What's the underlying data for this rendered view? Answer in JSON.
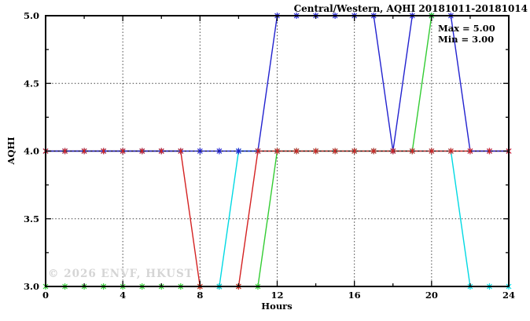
{
  "chart": {
    "title": "Central/Western, AQHI 20181011-20181014",
    "annotation_max": "Max = 5.00",
    "annotation_min": "Min = 3.00",
    "watermark": "© 2026 ENVF, HKUST",
    "xlabel": "Hours",
    "ylabel": "AQHI"
  },
  "chart_data": {
    "type": "line",
    "title": "Central/Western, AQHI 20181011-20181014",
    "xlabel": "Hours",
    "ylabel": "AQHI",
    "xlim": [
      0,
      24
    ],
    "ylim": [
      3.0,
      5.0
    ],
    "xticks": [
      0,
      4,
      8,
      12,
      16,
      20,
      24
    ],
    "xticklabels": [
      "0",
      "4",
      "8",
      "12",
      "16",
      "20",
      "24"
    ],
    "x_minor_ticks": [
      2,
      6,
      10,
      14,
      18,
      22
    ],
    "yticks": [
      3.0,
      3.5,
      4.0,
      4.5,
      5.0
    ],
    "yticklabels": [
      "3.0",
      "3.5",
      "4.0",
      "4.5",
      "5.0"
    ],
    "y_minor_ticks": [
      3.25,
      3.75,
      4.25,
      4.75
    ],
    "grid_x": [
      4,
      8,
      12,
      16,
      20
    ],
    "grid_y": [
      3.5,
      4.0,
      4.5
    ],
    "grid_style": "dotted",
    "legend_position": "none",
    "max_value": 5.0,
    "min_value": 3.0,
    "annotations": {
      "max": "Max = 5.00",
      "min": "Min = 3.00"
    },
    "watermark": "© 2026 ENVF, HKUST",
    "x_hours": [
      0,
      1,
      2,
      3,
      4,
      5,
      6,
      7,
      8,
      9,
      10,
      11,
      12,
      13,
      14,
      15,
      16,
      17,
      18,
      19,
      20,
      21,
      22,
      23,
      24
    ],
    "series": [
      {
        "name": "series-green",
        "color": "#33cc33",
        "values": [
          3,
          3,
          3,
          3,
          3,
          3,
          3,
          3,
          3,
          3,
          3,
          3,
          4,
          4,
          4,
          4,
          4,
          4,
          4,
          4,
          5
        ]
      },
      {
        "name": "series-cyan",
        "color": "#00d9e3",
        "values": [
          4,
          4,
          4,
          4,
          4,
          4,
          4,
          4,
          null,
          3,
          4,
          4,
          4,
          4,
          4,
          4,
          4,
          4,
          4,
          4,
          4,
          4,
          3,
          3,
          3
        ]
      },
      {
        "name": "series-red",
        "color": "#d42222",
        "values": [
          4,
          4,
          4,
          4,
          4,
          4,
          4,
          4,
          3,
          3,
          3,
          4,
          4,
          4,
          4,
          4,
          4,
          4,
          4,
          4,
          4,
          4,
          4,
          4,
          4
        ]
      },
      {
        "name": "series-blue",
        "color": "#2222cf",
        "values": [
          4,
          4,
          4,
          4,
          4,
          4,
          4,
          4,
          4,
          4,
          4,
          4,
          5,
          5,
          5,
          5,
          5,
          5,
          4,
          5,
          5,
          5,
          4,
          4,
          4
        ]
      }
    ]
  }
}
